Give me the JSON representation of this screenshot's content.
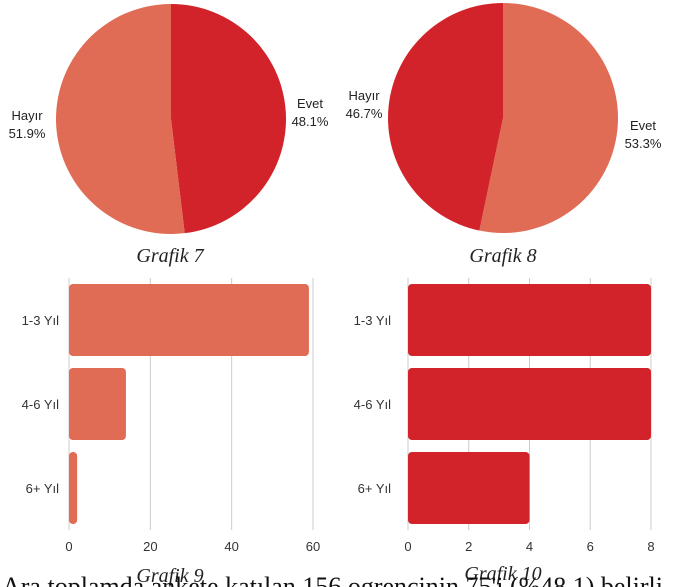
{
  "chart_data": [
    {
      "type": "pie",
      "caption": "Grafik 7",
      "slices": [
        {
          "label": "Evet",
          "value": 48.1,
          "value_label": "48.1%",
          "color": "#d2232a"
        },
        {
          "label": "Hayır",
          "value": 51.9,
          "value_label": "51.9%",
          "color": "#e06c55"
        }
      ]
    },
    {
      "type": "pie",
      "caption": "Grafik 8",
      "slices": [
        {
          "label": "Evet",
          "value": 53.3,
          "value_label": "53.3%",
          "color": "#e06c55"
        },
        {
          "label": "Hayır",
          "value": 46.7,
          "value_label": "46.7%",
          "color": "#d2232a"
        }
      ]
    },
    {
      "type": "bar",
      "orientation": "horizontal",
      "caption": "Grafik 9",
      "categories": [
        "1-3 Yıl",
        "4-6 Yıl",
        "6+ Yıl"
      ],
      "values": [
        59,
        14,
        2
      ],
      "xlim": [
        0,
        60
      ],
      "xticks": [
        "0",
        "20",
        "40",
        "60"
      ],
      "grid": true,
      "color": "#e06c55"
    },
    {
      "type": "bar",
      "orientation": "horizontal",
      "caption": "Grafik 10",
      "categories": [
        "1-3 Yıl",
        "4-6 Yıl",
        "6+ Yıl"
      ],
      "values": [
        8,
        8,
        4
      ],
      "xlim": [
        0,
        8
      ],
      "xticks": [
        "0",
        "2",
        "4",
        "6",
        "8"
      ],
      "grid": true,
      "color": "#d2232a"
    }
  ],
  "page_text": {
    "bottom_line": "Ara toplamda ankete katılan 156 ogrencinin 75'i (%48.1) belirli"
  }
}
